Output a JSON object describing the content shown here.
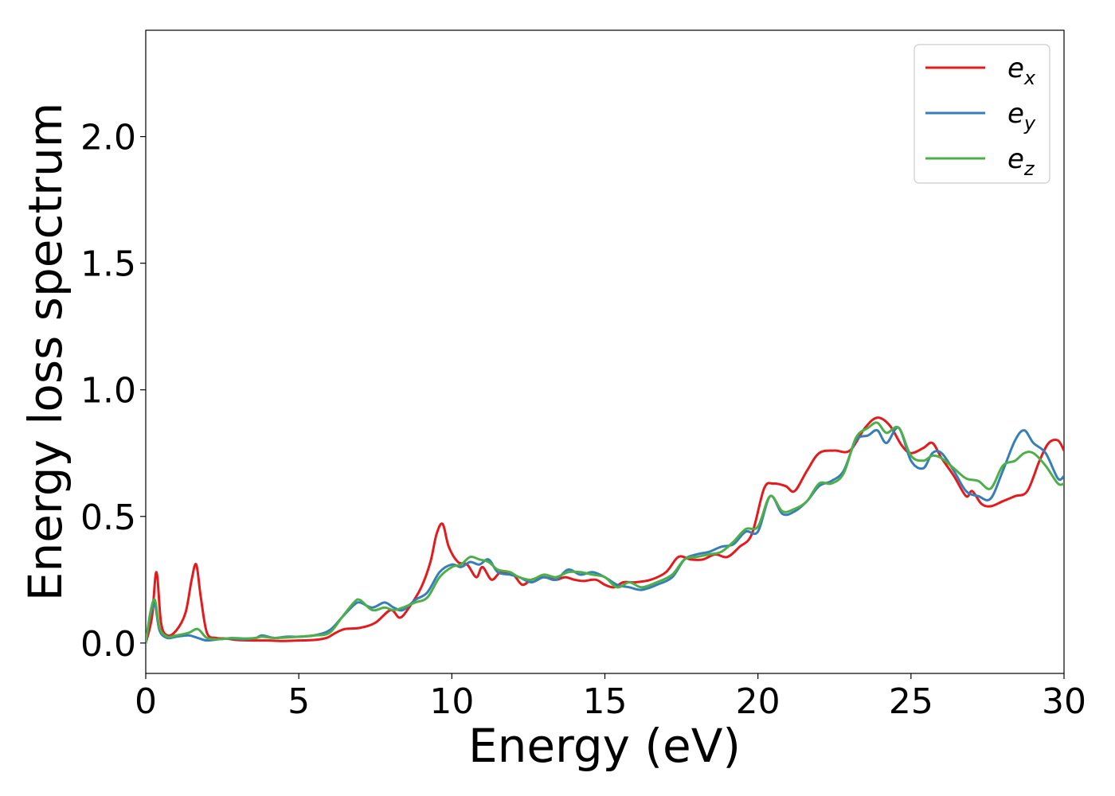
{
  "chart_data": {
    "type": "line",
    "xlabel": "Energy (eV)",
    "ylabel": "Energy loss spectrum",
    "xlim": [
      0,
      30
    ],
    "ylim": [
      -0.12,
      2.42
    ],
    "xticks": [
      0,
      5,
      10,
      15,
      20,
      25,
      30
    ],
    "xtick_labels": [
      "0",
      "5",
      "10",
      "15",
      "20",
      "25",
      "30"
    ],
    "yticks": [
      0.0,
      0.5,
      1.0,
      1.5,
      2.0
    ],
    "ytick_labels": [
      "0.0",
      "0.5",
      "1.0",
      "1.5",
      "2.0"
    ],
    "grid": false,
    "legend_position": "top-right",
    "series": [
      {
        "name": "e",
        "subscript": "x",
        "color": "#e41a1c",
        "x": [
          0,
          0.2,
          0.35,
          0.5,
          0.7,
          1.0,
          1.3,
          1.5,
          1.65,
          1.8,
          2.0,
          2.3,
          2.6,
          3.0,
          3.5,
          4.0,
          4.5,
          5.0,
          5.5,
          5.9,
          6.2,
          6.5,
          7.0,
          7.5,
          8.0,
          8.3,
          8.6,
          9.0,
          9.3,
          9.5,
          9.7,
          9.9,
          10.2,
          10.5,
          10.8,
          11.0,
          11.3,
          11.6,
          12.0,
          12.3,
          12.6,
          13.0,
          13.4,
          13.7,
          14.0,
          14.3,
          14.7,
          15.0,
          15.3,
          15.6,
          16.0,
          16.5,
          17.0,
          17.4,
          17.8,
          18.2,
          18.6,
          19.0,
          19.4,
          19.8,
          20.2,
          20.5,
          20.9,
          21.2,
          21.6,
          22.0,
          22.5,
          23.0,
          23.5,
          23.9,
          24.3,
          24.7,
          25.0,
          25.4,
          25.7,
          26.0,
          26.4,
          26.8,
          27.0,
          27.3,
          27.6,
          28.0,
          28.4,
          28.8,
          29.2,
          29.5,
          29.8,
          30.0
        ],
        "y": [
          0.0,
          0.1,
          0.28,
          0.08,
          0.03,
          0.05,
          0.12,
          0.25,
          0.31,
          0.18,
          0.04,
          0.02,
          0.018,
          0.012,
          0.01,
          0.01,
          0.008,
          0.01,
          0.012,
          0.02,
          0.04,
          0.055,
          0.06,
          0.08,
          0.13,
          0.1,
          0.14,
          0.22,
          0.32,
          0.43,
          0.47,
          0.38,
          0.32,
          0.31,
          0.26,
          0.3,
          0.25,
          0.28,
          0.27,
          0.23,
          0.25,
          0.26,
          0.25,
          0.26,
          0.25,
          0.245,
          0.25,
          0.23,
          0.22,
          0.24,
          0.24,
          0.25,
          0.28,
          0.34,
          0.33,
          0.33,
          0.35,
          0.34,
          0.38,
          0.43,
          0.61,
          0.63,
          0.62,
          0.6,
          0.68,
          0.75,
          0.76,
          0.76,
          0.85,
          0.89,
          0.86,
          0.78,
          0.75,
          0.77,
          0.79,
          0.73,
          0.66,
          0.58,
          0.6,
          0.55,
          0.54,
          0.56,
          0.58,
          0.6,
          0.72,
          0.79,
          0.8,
          0.76
        ]
      },
      {
        "name": "e",
        "subscript": "y",
        "color": "#377eb8",
        "x": [
          0,
          0.15,
          0.3,
          0.45,
          0.7,
          1.0,
          1.4,
          1.7,
          2.0,
          2.4,
          2.8,
          3.2,
          3.6,
          3.8,
          4.2,
          4.6,
          5.0,
          5.5,
          6.0,
          6.4,
          6.8,
          7.0,
          7.4,
          7.8,
          8.1,
          8.4,
          8.8,
          9.2,
          9.6,
          10.0,
          10.3,
          10.6,
          10.9,
          11.2,
          11.5,
          11.9,
          12.2,
          12.6,
          13.0,
          13.4,
          13.8,
          14.2,
          14.6,
          15.0,
          15.4,
          15.8,
          16.2,
          16.7,
          17.2,
          17.6,
          18.0,
          18.4,
          18.8,
          19.2,
          19.6,
          20.0,
          20.4,
          20.8,
          21.2,
          21.6,
          22.0,
          22.4,
          22.8,
          23.2,
          23.6,
          23.9,
          24.2,
          24.6,
          25.0,
          25.4,
          25.7,
          26.0,
          26.4,
          26.8,
          27.2,
          27.6,
          28.0,
          28.4,
          28.7,
          29.0,
          29.4,
          29.8,
          30.0
        ],
        "y": [
          0.0,
          0.11,
          0.15,
          0.05,
          0.02,
          0.025,
          0.03,
          0.02,
          0.01,
          0.015,
          0.018,
          0.015,
          0.02,
          0.03,
          0.02,
          0.025,
          0.025,
          0.03,
          0.05,
          0.1,
          0.15,
          0.16,
          0.14,
          0.16,
          0.14,
          0.13,
          0.17,
          0.2,
          0.28,
          0.31,
          0.3,
          0.32,
          0.31,
          0.33,
          0.28,
          0.27,
          0.26,
          0.24,
          0.26,
          0.25,
          0.29,
          0.27,
          0.28,
          0.26,
          0.23,
          0.22,
          0.21,
          0.23,
          0.26,
          0.33,
          0.35,
          0.36,
          0.38,
          0.39,
          0.44,
          0.44,
          0.58,
          0.51,
          0.52,
          0.56,
          0.62,
          0.64,
          0.68,
          0.8,
          0.82,
          0.84,
          0.79,
          0.85,
          0.72,
          0.69,
          0.75,
          0.75,
          0.68,
          0.6,
          0.58,
          0.57,
          0.68,
          0.8,
          0.84,
          0.79,
          0.75,
          0.65,
          0.66
        ]
      },
      {
        "name": "e",
        "subscript": "z",
        "color": "#4daf4a",
        "x": [
          0,
          0.15,
          0.3,
          0.45,
          0.7,
          1.0,
          1.4,
          1.7,
          2.0,
          2.4,
          2.8,
          3.2,
          3.6,
          3.8,
          4.2,
          4.6,
          5.0,
          5.5,
          6.0,
          6.4,
          6.8,
          7.0,
          7.4,
          7.8,
          8.1,
          8.4,
          8.8,
          9.2,
          9.6,
          10.0,
          10.3,
          10.6,
          10.9,
          11.2,
          11.5,
          11.9,
          12.2,
          12.6,
          13.0,
          13.4,
          13.8,
          14.2,
          14.6,
          15.0,
          15.4,
          15.8,
          16.2,
          16.7,
          17.2,
          17.6,
          18.0,
          18.4,
          18.8,
          19.2,
          19.6,
          20.0,
          20.4,
          20.8,
          21.2,
          21.6,
          22.0,
          22.4,
          22.8,
          23.2,
          23.6,
          23.9,
          24.2,
          24.6,
          25.0,
          25.4,
          25.7,
          26.0,
          26.4,
          26.8,
          27.2,
          27.6,
          28.0,
          28.4,
          28.7,
          29.0,
          29.4,
          29.8,
          30.0
        ],
        "y": [
          0.0,
          0.12,
          0.17,
          0.06,
          0.025,
          0.03,
          0.04,
          0.055,
          0.02,
          0.015,
          0.02,
          0.018,
          0.02,
          0.025,
          0.02,
          0.022,
          0.025,
          0.03,
          0.04,
          0.1,
          0.16,
          0.17,
          0.13,
          0.14,
          0.13,
          0.14,
          0.16,
          0.18,
          0.26,
          0.3,
          0.31,
          0.34,
          0.33,
          0.32,
          0.29,
          0.28,
          0.26,
          0.25,
          0.27,
          0.26,
          0.28,
          0.28,
          0.27,
          0.26,
          0.22,
          0.24,
          0.22,
          0.24,
          0.27,
          0.33,
          0.34,
          0.35,
          0.36,
          0.4,
          0.45,
          0.46,
          0.58,
          0.52,
          0.53,
          0.56,
          0.63,
          0.63,
          0.67,
          0.81,
          0.85,
          0.87,
          0.83,
          0.85,
          0.74,
          0.72,
          0.74,
          0.73,
          0.69,
          0.65,
          0.64,
          0.61,
          0.7,
          0.72,
          0.75,
          0.75,
          0.7,
          0.63,
          0.63
        ]
      }
    ]
  }
}
